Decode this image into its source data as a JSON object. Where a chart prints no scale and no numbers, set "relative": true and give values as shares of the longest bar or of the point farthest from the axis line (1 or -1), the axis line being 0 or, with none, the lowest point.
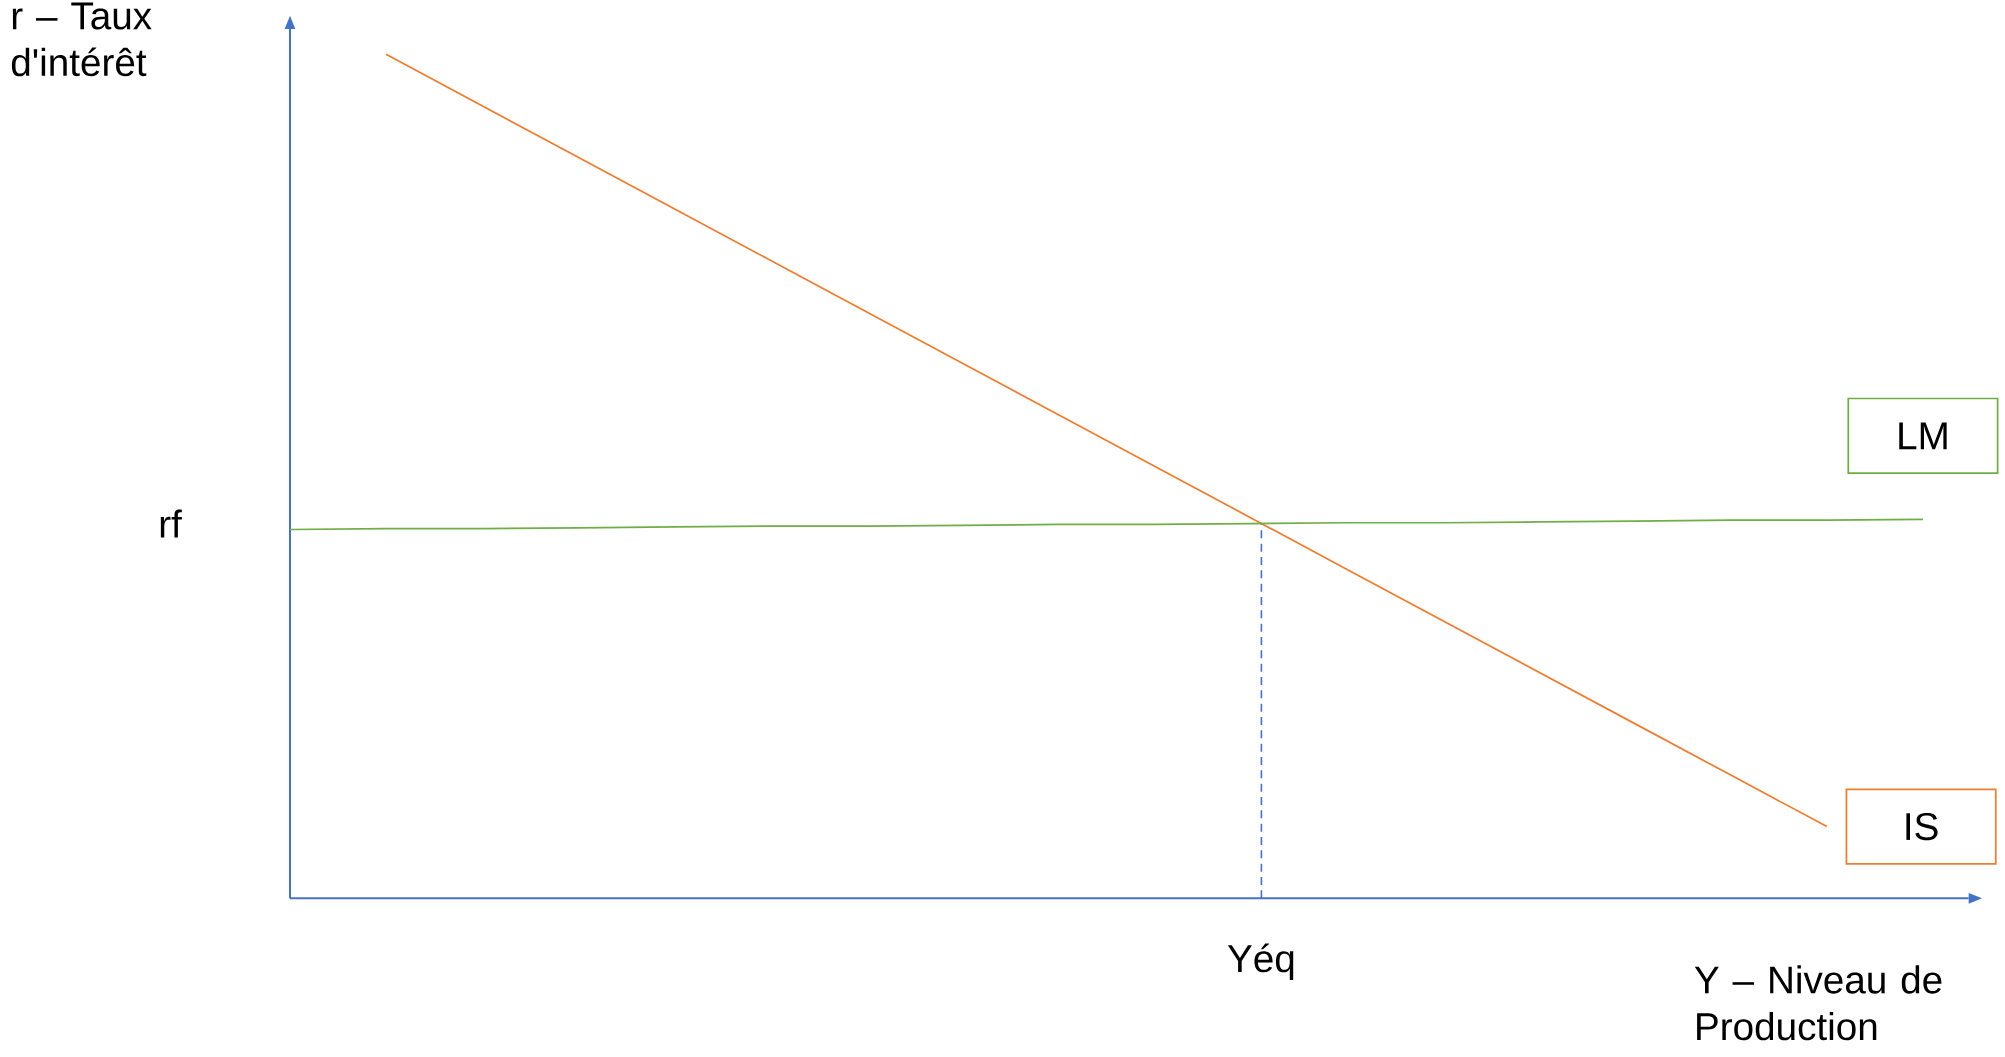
{
  "chart_data": {
    "type": "line",
    "relative": true,
    "xlabel": "Y – Niveau de Production",
    "ylabel": "r – Taux d'intérêt",
    "categories": [
      null,
      null,
      null,
      null,
      null,
      null,
      null,
      null,
      null,
      null,
      null,
      null,
      null,
      null,
      null,
      null,
      null,
      null
    ],
    "series": [
      {
        "name": "IS",
        "color": "#ed7d31",
        "values": [
          null,
          1,
          0.939,
          0.878,
          0.817,
          0.756,
          0.695,
          0.634,
          0.573,
          0.512,
          0.451,
          0.39,
          0.329,
          0.268,
          0.207,
          0.146,
          0.085,
          null
        ]
      },
      {
        "name": "LM",
        "color": "#70ad47",
        "values": [
          0.437,
          0.438,
          0.438,
          0.439,
          0.44,
          0.441,
          0.441,
          0.442,
          0.443,
          0.443,
          0.444,
          0.445,
          0.445,
          0.446,
          0.447,
          0.448,
          0.448,
          0.449
        ]
      }
    ],
    "ref_lines": [
      {
        "axis": "x",
        "value": "Yéq",
        "color": "#4472c4",
        "line_style": "dashed"
      }
    ],
    "annotations": [
      "rf"
    ]
  }
}
